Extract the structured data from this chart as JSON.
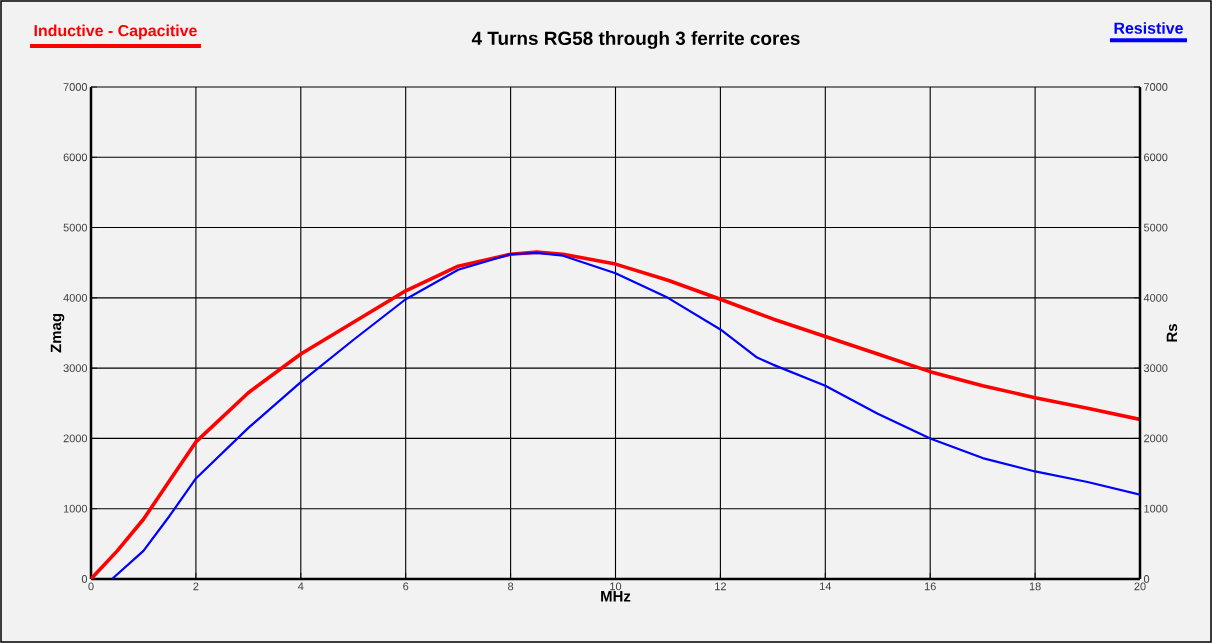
{
  "chart_data": {
    "type": "line",
    "title": "4 Turns RG58 through 3 ferrite cores",
    "xlabel": "MHz",
    "ylabel": "Zmag",
    "y2label": "Rs",
    "xlim": [
      0,
      20
    ],
    "xticks": [
      0,
      2,
      4,
      6,
      8,
      10,
      12,
      14,
      16,
      18,
      20
    ],
    "ylim": [
      0,
      7000
    ],
    "yticks": [
      0,
      1000,
      2000,
      3000,
      4000,
      5000,
      6000,
      7000
    ],
    "y2lim": [
      0,
      7000
    ],
    "y2ticks": [
      0,
      1000,
      2000,
      3000,
      4000,
      5000,
      6000,
      7000
    ],
    "grid": true,
    "legend": "top",
    "marker": "none",
    "line_style": "solid",
    "series": [
      {
        "name": "Inductive - Capacitive",
        "color": "#ff0000",
        "x": [
          0,
          0.5,
          1,
          1.5,
          2,
          3,
          4,
          5,
          6,
          7,
          8,
          8.5,
          9,
          10,
          11,
          12,
          13,
          14,
          15,
          16,
          17,
          18,
          19,
          20
        ],
        "values": [
          0,
          400,
          850,
          1400,
          1950,
          2650,
          3200,
          3650,
          4100,
          4450,
          4620,
          4650,
          4620,
          4480,
          4250,
          3980,
          3700,
          3450,
          3200,
          2950,
          2750,
          2580,
          2430,
          2270
        ]
      },
      {
        "name": "Resistive",
        "color": "#0000ff",
        "axis": "y2",
        "x": [
          0.4,
          1,
          1.5,
          2,
          3,
          4,
          5,
          6,
          7,
          8,
          8.5,
          9,
          10,
          11,
          12,
          12.7,
          13,
          14,
          15,
          16,
          17,
          18,
          19,
          20
        ],
        "values": [
          0,
          400,
          900,
          1430,
          2150,
          2800,
          3400,
          3980,
          4400,
          4620,
          4640,
          4600,
          4350,
          4000,
          3550,
          3150,
          3050,
          2750,
          2350,
          2000,
          1720,
          1530,
          1380,
          1200
        ]
      }
    ]
  }
}
